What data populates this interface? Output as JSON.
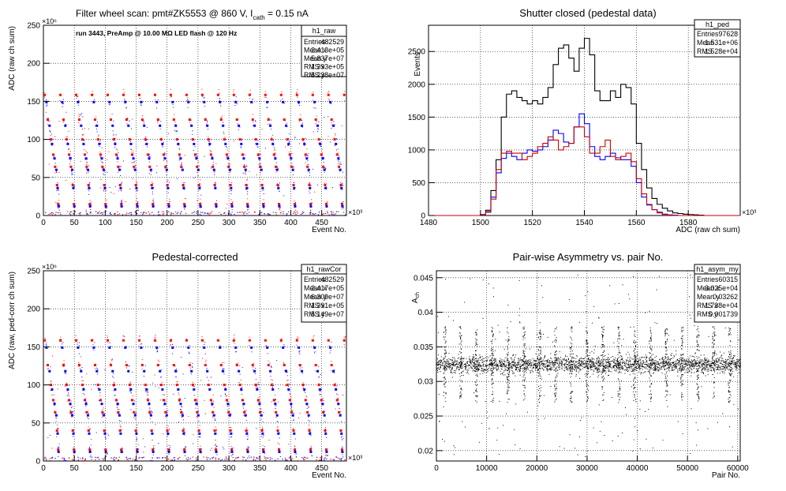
{
  "chart_data": [
    {
      "type": "scatter",
      "title": "Filter wheel scan: pmt#ZK5553 @   860 V, I",
      "title_sub": "cath",
      "title_tail": " = 0.15 nA",
      "annotation": "run 3443, PreAmp @ 10.00 MΩ LED flash @  120 Hz",
      "xlabel": "Event No.",
      "ylabel": "ADC (raw ch sum)",
      "x_exponent": "×10³",
      "y_exponent": "×10⁶",
      "xlim": [
        0,
        490
      ],
      "ylim": [
        0,
        250
      ],
      "x_ticks": [
        0,
        50,
        100,
        150,
        200,
        250,
        300,
        350,
        400,
        450
      ],
      "y_ticks": [
        0,
        50,
        100,
        150,
        200,
        250
      ],
      "grid": true,
      "series_colors": [
        "#ff0000",
        "#0000ff"
      ],
      "stats": {
        "name": "h1_raw",
        "rows": [
          [
            "Entries",
            "482529"
          ],
          [
            "Mean x",
            "2.413e+05"
          ],
          [
            "Mean y",
            "5.837e+07"
          ],
          [
            "RMS x",
            "1.393e+05"
          ],
          [
            "RMS y",
            "5.238e+07"
          ]
        ]
      },
      "pattern": {
        "period": 25.5,
        "phase": 0,
        "levels": [
          {
            "dx": 2,
            "y": 158.5,
            "color": "#ff0000"
          },
          {
            "dx": 5,
            "y": 149,
            "color": "#0000ff"
          },
          {
            "dx": 7,
            "y": 126,
            "color": "#ff0000"
          },
          {
            "dx": 10,
            "y": 118,
            "color": "#0000ff"
          },
          {
            "dx": 12,
            "y": 100,
            "color": "#ff0000"
          },
          {
            "dx": 14,
            "y": 94,
            "color": "#0000ff"
          },
          {
            "dx": 16,
            "y": 80,
            "color": "#ff0000"
          },
          {
            "dx": 18,
            "y": 75,
            "color": "#0000ff"
          },
          {
            "dx": 19,
            "y": 64,
            "color": "#ff0000"
          },
          {
            "dx": 21,
            "y": 60,
            "color": "#0000ff"
          },
          {
            "dx": 22,
            "y": 40,
            "color": "#ff0000"
          },
          {
            "dx": 23,
            "y": 36,
            "color": "#0000ff"
          },
          {
            "dx": 24,
            "y": 15,
            "color": "#ff0000"
          },
          {
            "dx": 24.5,
            "y": 12,
            "color": "#0000ff"
          }
        ]
      }
    },
    {
      "type": "line",
      "title": "Shutter closed (pedestal data)",
      "xlabel": "ADC (raw ch sum)",
      "ylabel": "Events",
      "x_exponent": "×10³",
      "xlim": [
        1480,
        1600
      ],
      "ylim": [
        0,
        2900
      ],
      "x_ticks": [
        1480,
        1500,
        1520,
        1540,
        1560,
        1580
      ],
      "y_ticks": [
        0,
        500,
        1000,
        1500,
        2000,
        2500
      ],
      "grid": true,
      "stats": {
        "name": "h1_ped",
        "rows": [
          [
            "Entries",
            "97628"
          ],
          [
            "Mean",
            "1.531e+06"
          ],
          [
            "RMS",
            "1.528e+04"
          ]
        ]
      },
      "bin_width": 2,
      "x_start": 1480,
      "series": [
        {
          "color": "#000000",
          "values": [
            0,
            0,
            0,
            0,
            0,
            0,
            0,
            0,
            0,
            0,
            15,
            80,
            380,
            850,
            1500,
            1850,
            1900,
            1800,
            1750,
            1700,
            1750,
            1700,
            1800,
            1950,
            2300,
            2550,
            2600,
            2400,
            2200,
            2550,
            2700,
            2450,
            1900,
            1750,
            1750,
            1900,
            1800,
            2000,
            1950,
            1700,
            1100,
            700,
            420,
            260,
            170,
            110,
            70,
            40,
            30,
            20,
            15,
            10,
            5,
            0,
            0,
            0,
            0,
            0,
            0,
            0
          ]
        },
        {
          "color": "#0000ff",
          "values": [
            0,
            0,
            0,
            0,
            0,
            0,
            0,
            0,
            0,
            0,
            10,
            50,
            280,
            650,
            870,
            950,
            900,
            850,
            950,
            1000,
            980,
            1000,
            1050,
            1150,
            1300,
            1250,
            1120,
            1100,
            1350,
            1550,
            1400,
            1050,
            900,
            850,
            900,
            950,
            880,
            850,
            850,
            750,
            500,
            280,
            160,
            90,
            50,
            20,
            10,
            5,
            0,
            0,
            0,
            0,
            0,
            0,
            0,
            0,
            0,
            0,
            0,
            0
          ]
        },
        {
          "color": "#cc0000",
          "values": [
            0,
            0,
            0,
            0,
            0,
            0,
            0,
            0,
            0,
            0,
            8,
            60,
            250,
            700,
            950,
            980,
            950,
            950,
            850,
            900,
            950,
            1050,
            1100,
            1200,
            1150,
            1000,
            1050,
            1100,
            1350,
            1350,
            1200,
            950,
            950,
            1050,
            1150,
            900,
            850,
            900,
            950,
            820,
            560,
            330,
            170,
            90,
            40,
            15,
            5,
            0,
            0,
            0,
            0,
            0,
            0,
            0,
            0,
            0,
            0,
            0,
            0,
            0
          ]
        }
      ]
    },
    {
      "type": "scatter",
      "title": "Pedestal-corrected",
      "xlabel": "Event No.",
      "ylabel": "ADC (raw, ped-corr ch sum)",
      "x_exponent": "×10³",
      "y_exponent": "×10⁶",
      "xlim": [
        0,
        490
      ],
      "ylim": [
        0,
        250
      ],
      "x_ticks": [
        0,
        50,
        100,
        150,
        200,
        250,
        300,
        350,
        400,
        450
      ],
      "y_ticks": [
        0,
        50,
        100,
        150,
        200,
        250
      ],
      "grid": true,
      "stats": {
        "name": "h1_rawCor",
        "rows": [
          [
            "Entries",
            "482529"
          ],
          [
            "Mean x",
            "2.417e+05"
          ],
          [
            "Mean y",
            "6.309e+07"
          ],
          [
            "RMS x",
            "1.391e+05"
          ],
          [
            "RMS y",
            "5.149e+07"
          ]
        ]
      },
      "pattern": {
        "period": 25.5,
        "phase": 0,
        "levels": [
          {
            "dx": 2,
            "y": 158.5,
            "color": "#ff0000"
          },
          {
            "dx": 5,
            "y": 149,
            "color": "#0000ff"
          },
          {
            "dx": 7,
            "y": 126,
            "color": "#ff0000"
          },
          {
            "dx": 10,
            "y": 118,
            "color": "#0000ff"
          },
          {
            "dx": 12,
            "y": 100,
            "color": "#ff0000"
          },
          {
            "dx": 14,
            "y": 94,
            "color": "#0000ff"
          },
          {
            "dx": 16,
            "y": 80,
            "color": "#ff0000"
          },
          {
            "dx": 18,
            "y": 75,
            "color": "#0000ff"
          },
          {
            "dx": 19,
            "y": 64,
            "color": "#ff0000"
          },
          {
            "dx": 21,
            "y": 60,
            "color": "#0000ff"
          },
          {
            "dx": 22,
            "y": 40,
            "color": "#ff0000"
          },
          {
            "dx": 23,
            "y": 36,
            "color": "#0000ff"
          },
          {
            "dx": 24,
            "y": 15,
            "color": "#ff0000"
          },
          {
            "dx": 24.5,
            "y": 12,
            "color": "#0000ff"
          }
        ]
      }
    },
    {
      "type": "scatter",
      "title": "Pair-wise Asymmetry vs. pair No.",
      "xlabel": "Pair No.",
      "ylabel": "A",
      "ylabel_sub": "ch",
      "xlim": [
        0,
        60500
      ],
      "ylim": [
        0.0185,
        0.046
      ],
      "x_ticks": [
        0,
        10000,
        20000,
        30000,
        40000,
        50000,
        60000
      ],
      "y_ticks": [
        0.02,
        0.025,
        0.03,
        0.035,
        0.04,
        0.045
      ],
      "grid": true,
      "stats": {
        "name": "h1_asym_my",
        "rows": [
          [
            "Entries",
            "60315"
          ],
          [
            "Mean x",
            "3.025e+04"
          ],
          [
            "Mean y",
            "0.03262"
          ],
          [
            "RMS x",
            "1.738e+04"
          ],
          [
            "RMS y",
            "0.001739"
          ]
        ]
      },
      "band": {
        "center": 0.0325,
        "sigma": 0.0006
      },
      "spike_period": 3150,
      "spike_phase": 1600,
      "spike_range": [
        0.027,
        0.038
      ]
    }
  ]
}
